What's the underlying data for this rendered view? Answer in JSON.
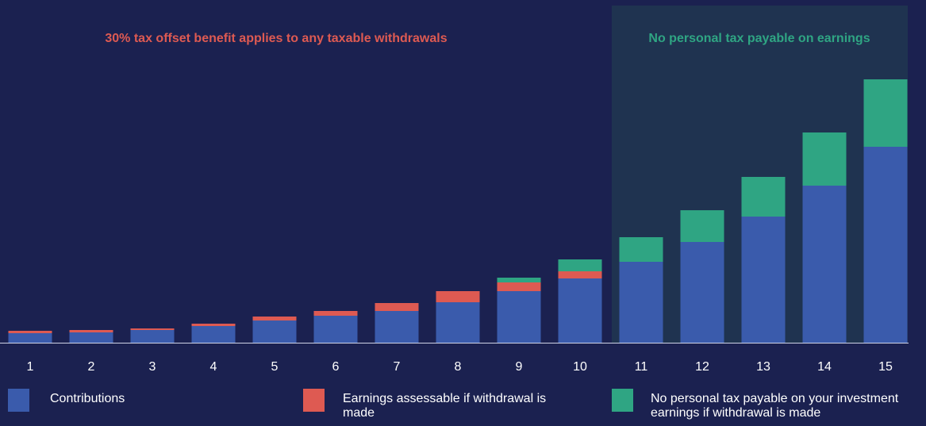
{
  "chart_data": {
    "type": "bar",
    "stacked": true,
    "categories": [
      "1",
      "2",
      "3",
      "4",
      "5",
      "6",
      "7",
      "8",
      "9",
      "10",
      "11",
      "12",
      "13",
      "14",
      "15"
    ],
    "series": [
      {
        "name": "Contributions",
        "color": "#3a5bac",
        "values": [
          12,
          13,
          16,
          21,
          28,
          34,
          40,
          51,
          65,
          81,
          102,
          127,
          159,
          198,
          247
        ]
      },
      {
        "name": "Earnings assessable if withdrawal is made",
        "color": "#de5a52",
        "values": [
          3,
          3,
          2,
          3,
          5,
          6,
          10,
          14,
          11,
          9,
          0,
          0,
          0,
          0,
          0
        ]
      },
      {
        "name": "No personal tax payable on your investment earnings if withdrawal is made",
        "color": "#2fa583",
        "values": [
          0,
          0,
          0,
          0,
          0,
          0,
          0,
          0,
          6,
          15,
          31,
          40,
          50,
          67,
          85
        ]
      }
    ],
    "ylim": [
      0,
      340
    ],
    "grid": false,
    "legend_position": "bottom",
    "annotations": [
      {
        "text": "30% tax offset benefit applies to any taxable withdrawals",
        "color": "#de5a52",
        "region": "years 1-10"
      },
      {
        "text": "No personal tax payable on earnings",
        "color": "#2fa583",
        "region": "years 11-15"
      }
    ],
    "highlight_region": {
      "from_category": "11",
      "to_category": "15",
      "color": "#1f3350"
    }
  }
}
